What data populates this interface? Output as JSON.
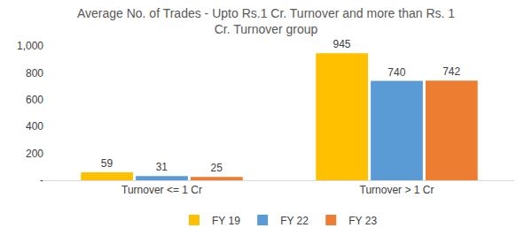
{
  "chart_data": {
    "type": "bar",
    "title": "Average No. of Trades - Upto Rs.1 Cr. Turnover and more than Rs. 1 Cr. Turnover group",
    "categories": [
      "Turnover <= 1 Cr",
      "Turnover > 1 Cr"
    ],
    "series": [
      {
        "name": "FY 19",
        "color": "#ffc000",
        "values": [
          59,
          945
        ]
      },
      {
        "name": "FY 22",
        "color": "#5b9bd5",
        "values": [
          31,
          740
        ]
      },
      {
        "name": "FY 23",
        "color": "#ed7d31",
        "values": [
          25,
          742
        ]
      }
    ],
    "ylim": [
      0,
      1000
    ],
    "yticks": [
      {
        "value": 0,
        "label": "-"
      },
      200,
      400,
      600,
      800,
      {
        "value": 1000,
        "label": "1,000"
      }
    ],
    "grid": false,
    "legend": "bottom",
    "data_labels": true
  }
}
